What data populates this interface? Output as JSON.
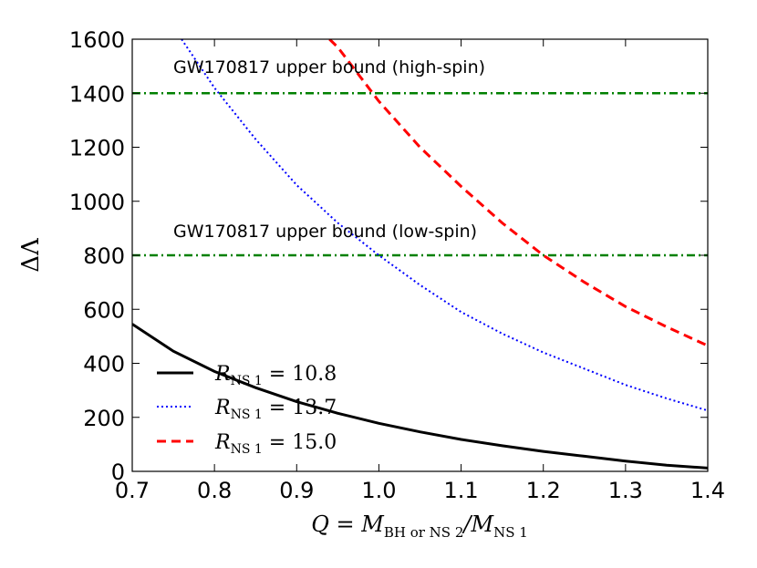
{
  "chart_data": {
    "type": "line",
    "title": "",
    "xlabel": "Q = M_BH or NS 2 / M_NS 1",
    "xlabel_main": "Q = M",
    "xlabel_sub1": "BH or NS 2",
    "xlabel_mid": "/M",
    "xlabel_sub2": "NS 1",
    "ylabel": "ΔΛ",
    "xlim": [
      0.7,
      1.4
    ],
    "ylim": [
      0,
      1600
    ],
    "xticks": [
      "0.7",
      "0.8",
      "0.9",
      "1.0",
      "1.1",
      "1.2",
      "1.3",
      "1.4"
    ],
    "yticks": [
      "0",
      "200",
      "400",
      "600",
      "800",
      "1000",
      "1200",
      "1400",
      "1600"
    ],
    "grid": false,
    "legend_position": "lower-left",
    "series": [
      {
        "name": "R_NS 1 = 10.8",
        "legend_main": "R",
        "legend_sub": "NS 1",
        "legend_value": " = 10.8",
        "color": "#000000",
        "style": "solid",
        "x": [
          0.7,
          0.75,
          0.8,
          0.85,
          0.9,
          0.95,
          1.0,
          1.05,
          1.1,
          1.15,
          1.2,
          1.25,
          1.3,
          1.35,
          1.4
        ],
        "y": [
          545,
          445,
          370,
          310,
          258,
          215,
          178,
          146,
          118,
          95,
          74,
          56,
          38,
          23,
          12
        ]
      },
      {
        "name": "R_NS 1 = 13.7",
        "legend_main": "R",
        "legend_sub": "NS 1",
        "legend_value": " = 13.7",
        "color": "#0000ff",
        "style": "dotted",
        "x": [
          0.76,
          0.8,
          0.85,
          0.9,
          0.95,
          1.0,
          1.05,
          1.1,
          1.15,
          1.2,
          1.25,
          1.3,
          1.35,
          1.4
        ],
        "y": [
          1600,
          1420,
          1230,
          1060,
          920,
          800,
          690,
          590,
          510,
          440,
          380,
          320,
          270,
          225
        ]
      },
      {
        "name": "R_NS 1 = 15.0",
        "legend_main": "R",
        "legend_sub": "NS 1",
        "legend_value": " = 15.0",
        "color": "#ff0000",
        "style": "dashed",
        "x": [
          0.94,
          0.95,
          1.0,
          1.05,
          1.1,
          1.15,
          1.2,
          1.25,
          1.3,
          1.35,
          1.4
        ],
        "y": [
          1600,
          1570,
          1370,
          1200,
          1055,
          920,
          800,
          700,
          610,
          535,
          465
        ]
      }
    ],
    "hlines": [
      {
        "y": 1400,
        "color": "#008000",
        "style": "dashdot",
        "label": "GW170817 upper bound (high-spin)"
      },
      {
        "y": 800,
        "color": "#008000",
        "style": "dashdot",
        "label": "GW170817 upper bound (low-spin)"
      }
    ]
  }
}
